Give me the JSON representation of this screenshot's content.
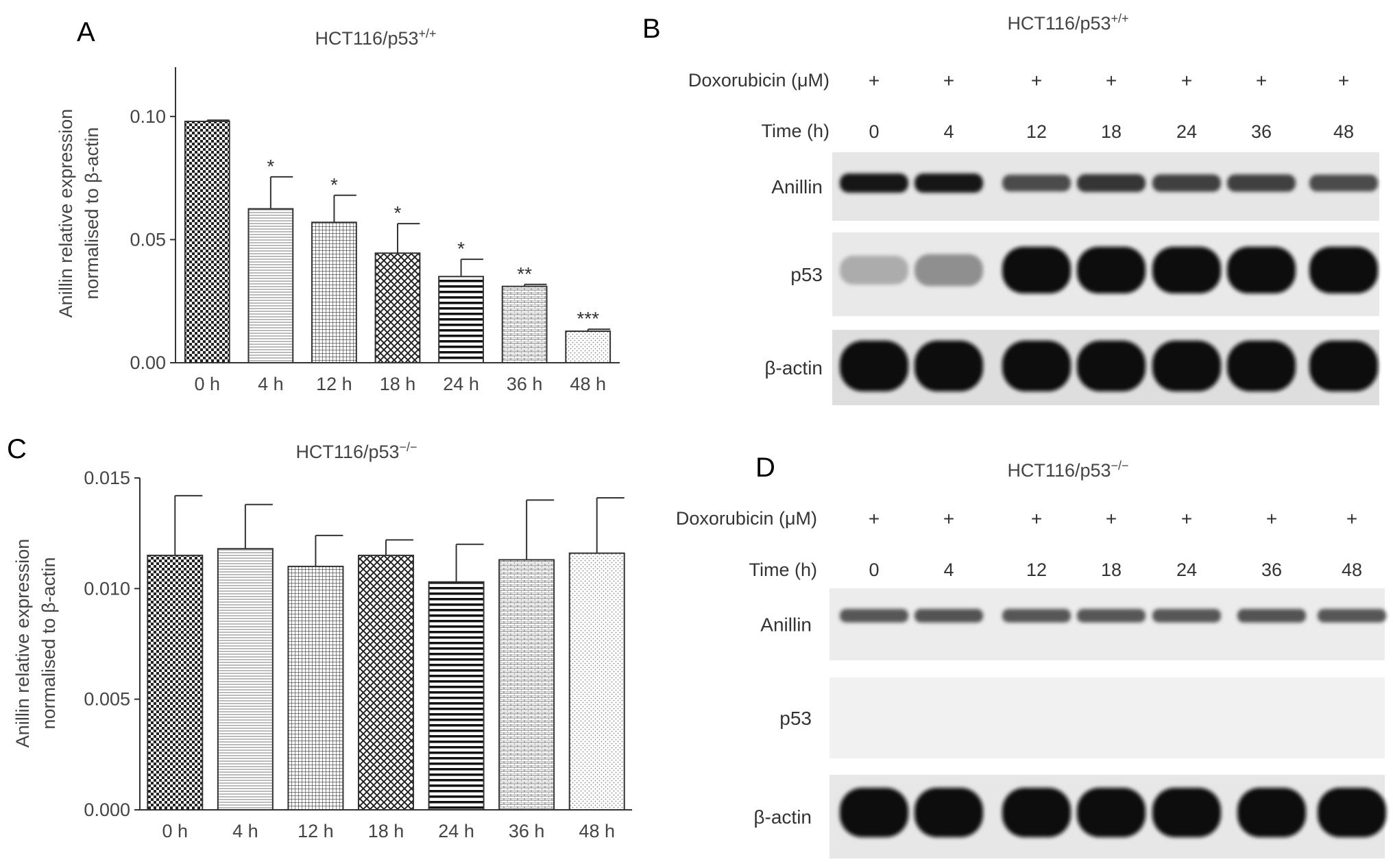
{
  "panels": {
    "A": {
      "letter": "A",
      "title_main": "HCT116/p53",
      "title_sup": "+/+",
      "ylabel_line1": "Anillin relative expression",
      "ylabel_line2": "normalised to β-actin"
    },
    "B": {
      "letter": "B",
      "title_main": "HCT116/p53",
      "title_sup": "+/+",
      "row_labels": {
        "doxorubicin": "Doxorubicin (μM)",
        "time": "Time (h)"
      },
      "plus": [
        "+",
        "+",
        "+",
        "+",
        "+",
        "+",
        "+"
      ],
      "times": [
        "0",
        "4",
        "12",
        "18",
        "24",
        "36",
        "48"
      ],
      "blots": [
        "Anillin",
        "p53",
        "β-actin"
      ]
    },
    "C": {
      "letter": "C",
      "title_main": "HCT116/p53",
      "title_sup": "−/−",
      "ylabel_line1": "Anillin relative expression",
      "ylabel_line2": "normalised to β-actin"
    },
    "D": {
      "letter": "D",
      "title_main": "HCT116/p53",
      "title_sup": "−/−",
      "row_labels": {
        "doxorubicin": "Doxorubicin (μM)",
        "time": "Time (h)"
      },
      "plus": [
        "+",
        "+",
        "+",
        "+",
        "+",
        "+",
        "+"
      ],
      "times": [
        "0",
        "4",
        "12",
        "18",
        "24",
        "36",
        "48"
      ],
      "blots": [
        "Anillin",
        "p53",
        "β-actin"
      ]
    }
  },
  "chart_data": [
    {
      "type": "bar",
      "panel": "A",
      "title": "HCT116/p53+/+",
      "categories": [
        "0 h",
        "4 h",
        "12 h",
        "18 h",
        "24 h",
        "36 h",
        "48 h"
      ],
      "values": [
        0.098,
        0.0625,
        0.057,
        0.0445,
        0.035,
        0.031,
        0.0128
      ],
      "errors": [
        0.0005,
        0.013,
        0.011,
        0.012,
        0.007,
        0.0008,
        0.0008
      ],
      "significance": [
        "",
        "*",
        "*",
        "*",
        "*",
        "**",
        "***"
      ],
      "ylabel": "Anillin relative expression normalised to β-actin",
      "ylim": [
        0,
        0.12
      ],
      "yticks": [
        "0.00",
        "0.05",
        "0.10"
      ],
      "ytick_values": [
        0,
        0.05,
        0.1
      ],
      "patterns": [
        "checker",
        "vlines",
        "grid",
        "cross",
        "hlines",
        "brick",
        "dots"
      ]
    },
    {
      "type": "bar",
      "panel": "C",
      "title": "HCT116/p53−/−",
      "categories": [
        "0 h",
        "4 h",
        "12 h",
        "18 h",
        "24 h",
        "36 h",
        "48 h"
      ],
      "values": [
        0.0115,
        0.0118,
        0.011,
        0.0115,
        0.0103,
        0.0113,
        0.0116
      ],
      "errors": [
        0.0027,
        0.002,
        0.0014,
        0.0007,
        0.0017,
        0.0027,
        0.0025
      ],
      "significance": [
        "",
        "",
        "",
        "",
        "",
        "",
        ""
      ],
      "ylabel": "Anillin relative expression normalised to β-actin",
      "ylim": [
        0,
        0.015
      ],
      "yticks": [
        "0.000",
        "0.005",
        "0.010",
        "0.015"
      ],
      "ytick_values": [
        0,
        0.005,
        0.01,
        0.015
      ],
      "patterns": [
        "checker",
        "vlines",
        "grid",
        "cross",
        "hlines",
        "brick",
        "dots"
      ]
    }
  ],
  "blot_data": {
    "B": {
      "Anillin": [
        0.85,
        0.85,
        0.6,
        0.7,
        0.65,
        0.65,
        0.6
      ],
      "p53": [
        0.15,
        0.3,
        1,
        1,
        1,
        1,
        1
      ],
      "β-actin": [
        1,
        1,
        1,
        1,
        1,
        1,
        1
      ]
    },
    "D": {
      "Anillin": [
        0.6,
        0.62,
        0.6,
        0.6,
        0.6,
        0.62,
        0.6
      ],
      "p53": [
        0,
        0,
        0,
        0,
        0,
        0,
        0
      ],
      "β-actin": [
        1,
        1,
        1,
        1,
        1,
        1,
        1
      ]
    }
  }
}
